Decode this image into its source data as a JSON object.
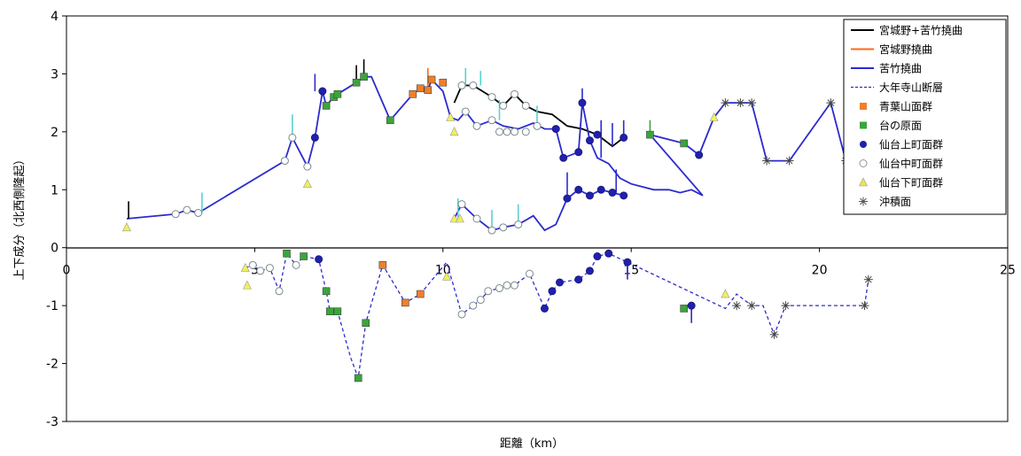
{
  "chart_data": {
    "type": "line",
    "xlabel": "距離（km）",
    "ylabel": "上下成分（北西側隆起）",
    "xlim": [
      0,
      25
    ],
    "ylim": [
      -3,
      4
    ],
    "x_ticks": [
      "0",
      "5",
      "10",
      "15",
      "20",
      "25"
    ],
    "y_ticks": [
      "-3",
      "-2",
      "-1",
      "0",
      "1",
      "2",
      "3",
      "4"
    ],
    "grid": false,
    "legend_position": "top-right",
    "legend": [
      {
        "label": "宮城野+苦竹撓曲",
        "kind": "line",
        "color": "#000000"
      },
      {
        "label": "宮城野撓曲",
        "kind": "line",
        "color": "#ff6a1a"
      },
      {
        "label": "苦竹撓曲",
        "kind": "line",
        "color": "#2b2bcf"
      },
      {
        "label": "大年寺山断層",
        "kind": "dashed",
        "color": "#2b2bcf"
      },
      {
        "label": "青葉山面群",
        "kind": "square",
        "color": "#f07f2a"
      },
      {
        "label": "台の原面",
        "kind": "square",
        "color": "#3aa53a"
      },
      {
        "label": "仙台上町面群",
        "kind": "circle",
        "color": "#2020b0"
      },
      {
        "label": "仙台中町面群",
        "kind": "open-circle",
        "color": "#8a9a9a"
      },
      {
        "label": "仙台下町面群",
        "kind": "triangle",
        "color": "#e8e84a"
      },
      {
        "label": "沖積面",
        "kind": "asterisk",
        "color": "#555555"
      }
    ],
    "series": [
      {
        "label": "宮城野+苦竹撓曲",
        "color": "#000000",
        "style": "solid",
        "points": [
          [
            10.3,
            2.5
          ],
          [
            10.5,
            2.8
          ],
          [
            10.8,
            2.8
          ],
          [
            11.3,
            2.6
          ],
          [
            11.6,
            2.45
          ],
          [
            11.9,
            2.65
          ],
          [
            12.2,
            2.45
          ],
          [
            12.5,
            2.35
          ],
          [
            12.9,
            2.3
          ],
          [
            13.3,
            2.1
          ],
          [
            13.7,
            2.05
          ],
          [
            14.1,
            1.95
          ],
          [
            14.5,
            1.75
          ],
          [
            14.8,
            1.9
          ]
        ]
      },
      {
        "label": "苦竹撓曲 (主系列)",
        "color": "#2b2bcf",
        "style": "solid",
        "points": [
          [
            1.6,
            0.5
          ],
          [
            2.9,
            0.58
          ],
          [
            3.2,
            0.65
          ],
          [
            3.5,
            0.6
          ],
          [
            5.8,
            1.5
          ],
          [
            6.0,
            1.9
          ],
          [
            6.4,
            1.4
          ],
          [
            6.6,
            1.9
          ],
          [
            6.8,
            2.7
          ],
          [
            6.9,
            2.45
          ],
          [
            7.1,
            2.6
          ],
          [
            7.2,
            2.65
          ],
          [
            7.7,
            2.85
          ],
          [
            7.9,
            2.95
          ],
          [
            8.1,
            2.95
          ],
          [
            8.6,
            2.2
          ],
          [
            9.2,
            2.65
          ],
          [
            9.4,
            2.75
          ],
          [
            9.6,
            2.72
          ],
          [
            9.7,
            2.9
          ],
          [
            10.0,
            2.7
          ],
          [
            10.2,
            2.25
          ],
          [
            10.4,
            2.2
          ],
          [
            10.6,
            2.35
          ],
          [
            10.9,
            2.1
          ],
          [
            11.3,
            2.2
          ],
          [
            11.6,
            2.1
          ],
          [
            12.0,
            2.05
          ],
          [
            12.4,
            2.15
          ],
          [
            12.7,
            2.05
          ],
          [
            13.0,
            2.05
          ],
          [
            13.2,
            1.55
          ],
          [
            13.6,
            1.65
          ],
          [
            13.7,
            2.5
          ],
          [
            13.9,
            1.85
          ],
          [
            14.1,
            1.55
          ],
          [
            14.4,
            1.45
          ],
          [
            14.7,
            1.2
          ],
          [
            15.0,
            1.1
          ],
          [
            15.6,
            1.0
          ],
          [
            16.0,
            1.0
          ],
          [
            16.3,
            0.95
          ],
          [
            16.6,
            1.0
          ],
          [
            16.9,
            0.9
          ],
          [
            15.5,
            1.95
          ],
          [
            16.4,
            1.8
          ],
          [
            16.8,
            1.6
          ],
          [
            17.2,
            2.25
          ],
          [
            17.5,
            2.5
          ],
          [
            17.9,
            2.5
          ],
          [
            18.2,
            2.5
          ],
          [
            18.6,
            1.5
          ],
          [
            19.2,
            1.5
          ],
          [
            20.3,
            2.5
          ],
          [
            20.7,
            1.5
          ],
          [
            21.2,
            1.5
          ]
        ]
      },
      {
        "label": "苦竹撓曲 (下段)",
        "color": "#2b2bcf",
        "style": "solid",
        "points": [
          [
            10.3,
            0.5
          ],
          [
            10.5,
            0.75
          ],
          [
            10.9,
            0.5
          ],
          [
            11.3,
            0.3
          ],
          [
            11.6,
            0.35
          ],
          [
            12.0,
            0.4
          ],
          [
            12.4,
            0.55
          ],
          [
            12.7,
            0.3
          ],
          [
            13.0,
            0.4
          ],
          [
            13.3,
            0.85
          ],
          [
            13.6,
            1.0
          ],
          [
            13.9,
            0.9
          ],
          [
            14.2,
            1.0
          ],
          [
            14.5,
            0.95
          ],
          [
            14.8,
            0.9
          ]
        ]
      },
      {
        "label": "大年寺山断層",
        "color": "#2b2bcf",
        "style": "dashed",
        "points": [
          [
            4.75,
            -0.35
          ],
          [
            4.95,
            -0.3
          ],
          [
            5.15,
            -0.4
          ],
          [
            5.4,
            -0.35
          ],
          [
            5.65,
            -0.75
          ],
          [
            5.85,
            -0.1
          ],
          [
            6.1,
            -0.3
          ],
          [
            6.3,
            -0.15
          ],
          [
            6.7,
            -0.2
          ],
          [
            6.9,
            -0.75
          ],
          [
            7.0,
            -1.1
          ],
          [
            7.2,
            -1.1
          ],
          [
            7.55,
            -1.9
          ],
          [
            7.75,
            -2.25
          ],
          [
            7.95,
            -1.3
          ],
          [
            8.4,
            -0.3
          ],
          [
            9.0,
            -0.95
          ],
          [
            9.4,
            -0.8
          ],
          [
            10.1,
            -0.25
          ],
          [
            10.5,
            -1.15
          ],
          [
            10.8,
            -1.0
          ],
          [
            11.0,
            -0.9
          ],
          [
            11.2,
            -0.75
          ],
          [
            11.5,
            -0.7
          ],
          [
            11.7,
            -0.65
          ],
          [
            11.9,
            -0.65
          ],
          [
            12.3,
            -0.45
          ],
          [
            12.7,
            -1.05
          ],
          [
            12.9,
            -0.75
          ],
          [
            13.1,
            -0.6
          ],
          [
            13.6,
            -0.55
          ],
          [
            13.9,
            -0.4
          ],
          [
            14.1,
            -0.15
          ],
          [
            14.4,
            -0.1
          ],
          [
            14.9,
            -0.25
          ],
          [
            17.5,
            -1.05
          ],
          [
            17.8,
            -0.8
          ],
          [
            18.2,
            -1.0
          ],
          [
            18.5,
            -1.0
          ],
          [
            18.8,
            -1.5
          ],
          [
            19.1,
            -1.0
          ],
          [
            19.9,
            -1.0
          ],
          [
            21.2,
            -1.0
          ],
          [
            21.3,
            -0.55
          ]
        ]
      }
    ],
    "markers": {
      "square_orange": [
        [
          9.2,
          2.65
        ],
        [
          9.4,
          2.75
        ],
        [
          9.6,
          2.72
        ],
        [
          9.7,
          2.9
        ],
        [
          10.0,
          2.85
        ],
        [
          8.4,
          -0.3
        ],
        [
          9.0,
          -0.95
        ],
        [
          9.4,
          -0.8
        ]
      ],
      "square_green": [
        [
          6.9,
          2.45
        ],
        [
          7.1,
          2.6
        ],
        [
          7.2,
          2.65
        ],
        [
          7.7,
          2.85
        ],
        [
          7.9,
          2.95
        ],
        [
          8.6,
          2.2
        ],
        [
          15.5,
          1.95
        ],
        [
          16.4,
          1.8
        ],
        [
          5.85,
          -0.1
        ],
        [
          6.3,
          -0.15
        ],
        [
          6.9,
          -0.75
        ],
        [
          7.0,
          -1.1
        ],
        [
          7.2,
          -1.1
        ],
        [
          7.75,
          -2.25
        ],
        [
          7.95,
          -1.3
        ],
        [
          16.4,
          -1.05
        ]
      ],
      "circle_blue": [
        [
          6.6,
          1.9
        ],
        [
          6.8,
          2.7
        ],
        [
          13.0,
          2.05
        ],
        [
          13.2,
          1.55
        ],
        [
          13.6,
          1.65
        ],
        [
          13.7,
          2.5
        ],
        [
          13.9,
          1.85
        ],
        [
          14.8,
          1.9
        ],
        [
          14.1,
          1.95
        ],
        [
          16.8,
          1.6
        ],
        [
          13.3,
          0.85
        ],
        [
          13.6,
          1.0
        ],
        [
          13.9,
          0.9
        ],
        [
          14.2,
          1.0
        ],
        [
          14.5,
          0.95
        ],
        [
          14.8,
          0.9
        ],
        [
          6.7,
          -0.2
        ],
        [
          12.7,
          -1.05
        ],
        [
          12.9,
          -0.75
        ],
        [
          13.1,
          -0.6
        ],
        [
          13.6,
          -0.55
        ],
        [
          13.9,
          -0.4
        ],
        [
          14.1,
          -0.15
        ],
        [
          14.4,
          -0.1
        ],
        [
          14.9,
          -0.25
        ],
        [
          16.6,
          -1.0
        ]
      ],
      "circle_open": [
        [
          2.9,
          0.58
        ],
        [
          3.2,
          0.65
        ],
        [
          3.5,
          0.6
        ],
        [
          5.8,
          1.5
        ],
        [
          6.0,
          1.9
        ],
        [
          6.4,
          1.4
        ],
        [
          10.5,
          2.8
        ],
        [
          10.8,
          2.8
        ],
        [
          11.3,
          2.6
        ],
        [
          11.6,
          2.45
        ],
        [
          11.9,
          2.65
        ],
        [
          12.2,
          2.45
        ],
        [
          10.6,
          2.35
        ],
        [
          10.9,
          2.1
        ],
        [
          11.3,
          2.2
        ],
        [
          11.5,
          2.0
        ],
        [
          11.7,
          2.0
        ],
        [
          11.9,
          2.0
        ],
        [
          12.2,
          2.0
        ],
        [
          12.5,
          2.1
        ],
        [
          10.5,
          0.75
        ],
        [
          10.9,
          0.5
        ],
        [
          11.3,
          0.3
        ],
        [
          11.6,
          0.35
        ],
        [
          12.0,
          0.4
        ],
        [
          4.95,
          -0.3
        ],
        [
          5.15,
          -0.4
        ],
        [
          5.4,
          -0.35
        ],
        [
          5.65,
          -0.75
        ],
        [
          6.1,
          -0.3
        ],
        [
          10.5,
          -1.15
        ],
        [
          10.8,
          -1.0
        ],
        [
          11.0,
          -0.9
        ],
        [
          11.2,
          -0.75
        ],
        [
          11.5,
          -0.7
        ],
        [
          11.7,
          -0.65
        ],
        [
          11.9,
          -0.65
        ],
        [
          12.3,
          -0.45
        ]
      ],
      "triangle_yellow": [
        [
          1.6,
          0.35
        ],
        [
          6.4,
          1.1
        ],
        [
          10.2,
          2.25
        ],
        [
          10.3,
          2.0
        ],
        [
          10.3,
          0.5
        ],
        [
          10.45,
          0.5
        ],
        [
          17.2,
          2.25
        ],
        [
          4.75,
          -0.35
        ],
        [
          4.8,
          -0.65
        ],
        [
          10.1,
          -0.5
        ],
        [
          17.5,
          -0.8
        ]
      ],
      "asterisk": [
        [
          17.5,
          2.5
        ],
        [
          17.9,
          2.5
        ],
        [
          18.2,
          2.5
        ],
        [
          18.6,
          1.5
        ],
        [
          19.2,
          1.5
        ],
        [
          20.3,
          2.5
        ],
        [
          20.7,
          1.5
        ],
        [
          21.2,
          1.5
        ],
        [
          17.8,
          -1.0
        ],
        [
          18.2,
          -1.0
        ],
        [
          18.8,
          -1.5
        ],
        [
          19.1,
          -1.0
        ],
        [
          21.2,
          -1.0
        ],
        [
          21.3,
          -0.55
        ]
      ]
    }
  }
}
